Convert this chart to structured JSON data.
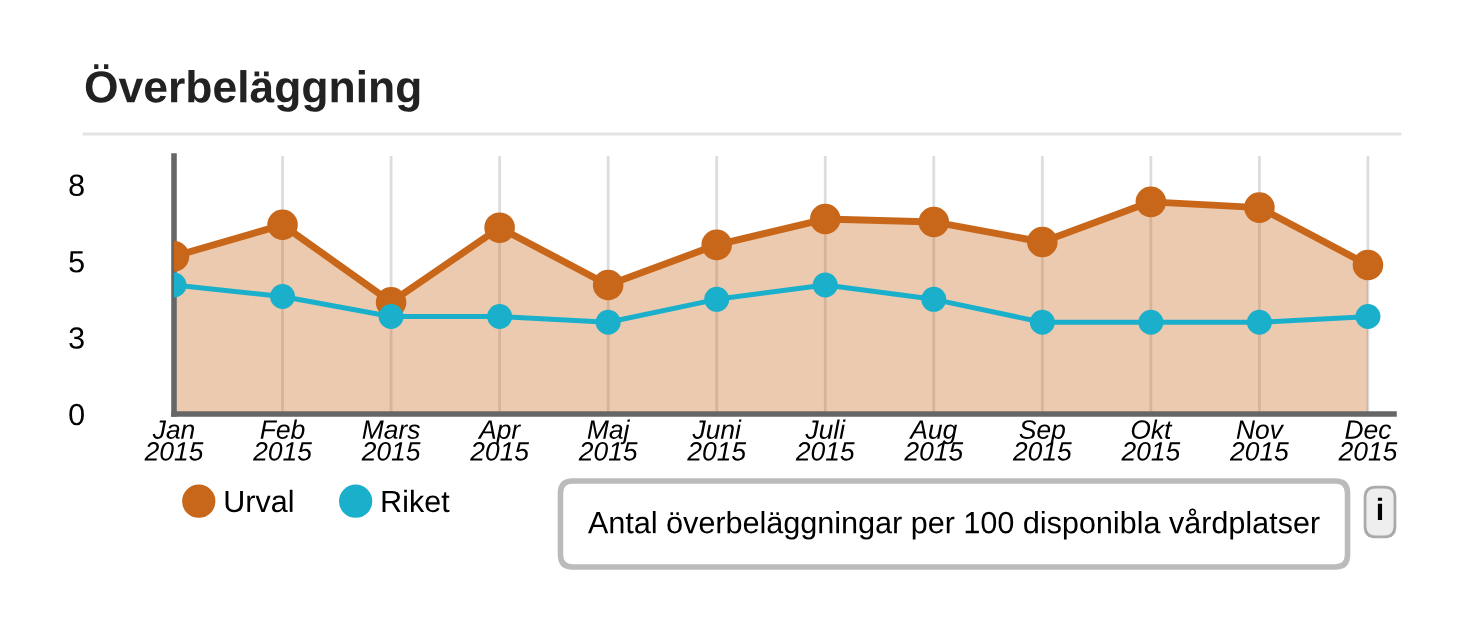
{
  "chart_data": {
    "type": "line",
    "title": "Överbeläggning",
    "categories": [
      "Jan\n2015",
      "Feb\n2015",
      "Mars\n2015",
      "Apr\n2015",
      "Maj\n2015",
      "Juni\n2015",
      "Juli\n2015",
      "Aug\n2015",
      "Sep\n2015",
      "Okt\n2015",
      "Nov\n2015",
      "Dec\n2015"
    ],
    "series": [
      {
        "name": "Urval",
        "type": "area",
        "color": "#c8671a",
        "values": [
          5.5,
          6.6,
          3.9,
          6.5,
          4.5,
          5.9,
          6.8,
          6.7,
          6.0,
          7.4,
          7.2,
          5.2
        ]
      },
      {
        "name": "Riket",
        "color": "#1ab0cc",
        "values": [
          4.5,
          4.1,
          3.4,
          3.4,
          3.2,
          4.0,
          4.5,
          4.0,
          3.2,
          3.2,
          3.2,
          3.4
        ]
      }
    ],
    "ylim": [
      0,
      9
    ],
    "yticks": [
      0,
      {
        "value": 2.67,
        "label": "3"
      },
      {
        "value": 5.33,
        "label": "5"
      },
      8
    ],
    "grid": "x",
    "legend": "bottom left",
    "marker": "circle",
    "annotations": [
      "Antal överbeläggningar per 100 disponibla vårdplatser",
      "i"
    ]
  }
}
